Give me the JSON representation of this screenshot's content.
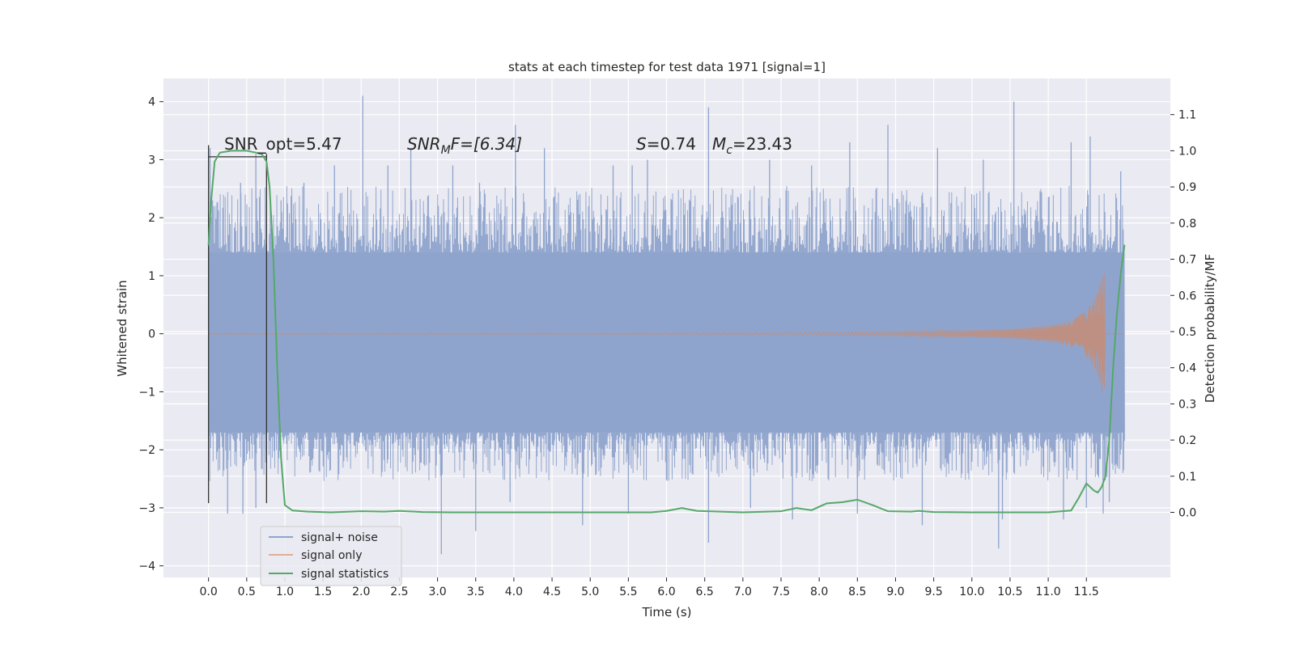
{
  "chart_data": {
    "type": "line",
    "title": "stats at each timestep for test data 1971 [signal=1]",
    "xlabel": "Time (s)",
    "ylabel": "Whitened strain",
    "y2label": "Detection probability/MF",
    "xlim": [
      -0.59,
      12.6
    ],
    "ylim": [
      -4.2,
      4.4
    ],
    "y2lim": [
      -0.18,
      1.2
    ],
    "x_ticks": [
      "0.0",
      "0.5",
      "1.0",
      "1.5",
      "2.0",
      "2.5",
      "3.0",
      "3.5",
      "4.0",
      "4.5",
      "5.0",
      "5.5",
      "6.0",
      "6.5",
      "7.0",
      "7.5",
      "8.0",
      "8.5",
      "9.0",
      "9.5",
      "10.0",
      "10.5",
      "11.0",
      "11.5"
    ],
    "y_ticks": [
      "4",
      "3",
      "2",
      "1",
      "0",
      "−1",
      "−2",
      "−3",
      "−4"
    ],
    "y2_ticks": [
      "1.1",
      "1.0",
      "0.9",
      "0.8",
      "0.7",
      "0.6",
      "0.5",
      "0.4",
      "0.3",
      "0.2",
      "0.1",
      "0.0"
    ],
    "grid": true,
    "legend_position": "bottom-left",
    "colors": {
      "background": "#eaeaf2",
      "noise": "#8fa4cc",
      "signal": "#dd8452",
      "stats": "#55a868",
      "marker": "#333333"
    },
    "annotations": {
      "snr_opt": "SNR_opt=5.47",
      "snr_mf_main": "SNR",
      "snr_mf_sub": "M",
      "snr_mf_rest": "F=[6.34]",
      "s_sym": "S",
      "s_val": "=0.74",
      "mc_sym": "M",
      "mc_sub": "c",
      "mc_val": "=23.43"
    },
    "markers_x": [
      0.0,
      0.76
    ],
    "noise_envelope": {
      "x_range": [
        0.0,
        12.0
      ],
      "core_upper": 1.4,
      "core_lower": -1.7,
      "typical_peak": 2.4,
      "max_peak": 4.1,
      "min_trough": -3.8
    },
    "noise_spikes": [
      {
        "x": 0.02,
        "y": 3.2
      },
      {
        "x": 0.42,
        "y": 2.6
      },
      {
        "x": 0.62,
        "y": 3.1
      },
      {
        "x": 0.95,
        "y": 2.3
      },
      {
        "x": 1.25,
        "y": 2.6
      },
      {
        "x": 1.65,
        "y": 2.9
      },
      {
        "x": 2.02,
        "y": 4.1
      },
      {
        "x": 2.35,
        "y": 2.9
      },
      {
        "x": 2.65,
        "y": 3.2
      },
      {
        "x": 3.2,
        "y": 2.9
      },
      {
        "x": 3.55,
        "y": 2.6
      },
      {
        "x": 4.02,
        "y": 3.6
      },
      {
        "x": 4.4,
        "y": 3.2
      },
      {
        "x": 5.3,
        "y": 2.9
      },
      {
        "x": 5.55,
        "y": 2.9
      },
      {
        "x": 5.75,
        "y": 3.0
      },
      {
        "x": 6.55,
        "y": 3.9
      },
      {
        "x": 7.35,
        "y": 3.0
      },
      {
        "x": 7.9,
        "y": 2.9
      },
      {
        "x": 8.4,
        "y": 3.3
      },
      {
        "x": 8.9,
        "y": 3.6
      },
      {
        "x": 9.55,
        "y": 3.2
      },
      {
        "x": 10.15,
        "y": 3.0
      },
      {
        "x": 10.55,
        "y": 4.0
      },
      {
        "x": 11.3,
        "y": 3.3
      },
      {
        "x": 11.55,
        "y": 3.4
      },
      {
        "x": 11.95,
        "y": 2.8
      },
      {
        "x": 0.25,
        "y": -3.1
      },
      {
        "x": 0.45,
        "y": -3.1
      },
      {
        "x": 0.62,
        "y": -3.0
      },
      {
        "x": 3.05,
        "y": -3.8
      },
      {
        "x": 3.5,
        "y": -3.4
      },
      {
        "x": 3.95,
        "y": -2.9
      },
      {
        "x": 4.9,
        "y": -3.3
      },
      {
        "x": 5.5,
        "y": -3.1
      },
      {
        "x": 6.55,
        "y": -3.6
      },
      {
        "x": 7.1,
        "y": -3.0
      },
      {
        "x": 7.65,
        "y": -3.2
      },
      {
        "x": 8.5,
        "y": -3.1
      },
      {
        "x": 9.35,
        "y": -3.3
      },
      {
        "x": 10.35,
        "y": -3.7
      },
      {
        "x": 10.4,
        "y": -3.2
      },
      {
        "x": 11.2,
        "y": -3.2
      },
      {
        "x": 11.5,
        "y": -3.0
      },
      {
        "x": 11.72,
        "y": -3.1
      },
      {
        "x": 11.8,
        "y": -2.9
      }
    ],
    "signal_envelope": {
      "x": [
        0.0,
        5.0,
        7.5,
        9.0,
        10.0,
        10.5,
        11.0,
        11.3,
        11.5,
        11.62,
        11.7,
        11.74,
        11.75,
        11.8,
        12.0
      ],
      "amp": [
        0.01,
        0.01,
        0.02,
        0.04,
        0.06,
        0.08,
        0.14,
        0.22,
        0.4,
        0.65,
        1.0,
        1.05,
        0.0,
        0.0,
        0.0
      ]
    },
    "stats_series": {
      "name": "signal statistics",
      "x": [
        0.0,
        0.03,
        0.08,
        0.15,
        0.3,
        0.5,
        0.62,
        0.7,
        0.76,
        0.8,
        0.85,
        0.9,
        0.95,
        1.0,
        1.1,
        1.3,
        1.6,
        2.0,
        2.3,
        2.5,
        2.8,
        3.2,
        4.0,
        5.0,
        5.8,
        6.0,
        6.2,
        6.4,
        7.0,
        7.5,
        7.7,
        7.9,
        8.1,
        8.3,
        8.5,
        8.7,
        8.9,
        9.2,
        9.3,
        9.5,
        10.0,
        10.5,
        11.0,
        11.3,
        11.4,
        11.5,
        11.6,
        11.65,
        11.7,
        11.75,
        11.8,
        11.85,
        11.9,
        11.95,
        12.0
      ],
      "y": [
        0.74,
        0.85,
        0.97,
        0.995,
        1.0,
        1.0,
        0.995,
        0.99,
        0.97,
        0.9,
        0.7,
        0.4,
        0.15,
        0.02,
        0.005,
        0.002,
        0.0,
        0.003,
        0.002,
        0.004,
        0.001,
        0.0,
        0.0,
        0.0,
        0.0,
        0.004,
        0.012,
        0.004,
        0.0,
        0.003,
        0.012,
        0.006,
        0.025,
        0.028,
        0.035,
        0.02,
        0.003,
        0.002,
        0.004,
        0.001,
        0.0,
        0.0,
        0.0,
        0.005,
        0.04,
        0.08,
        0.06,
        0.055,
        0.07,
        0.1,
        0.2,
        0.4,
        0.55,
        0.66,
        0.74
      ]
    },
    "series": [
      {
        "name": "signal+ noise"
      },
      {
        "name": "signal only"
      },
      {
        "name": "signal statistics"
      }
    ]
  }
}
